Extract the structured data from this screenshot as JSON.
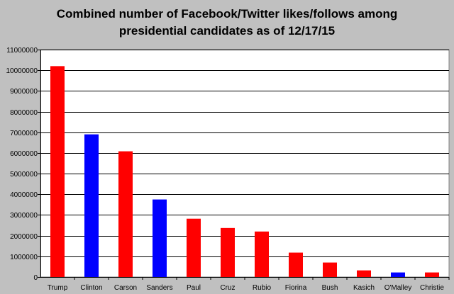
{
  "chart_data": {
    "type": "bar",
    "title_lines": [
      "Combined number of Facebook/Twitter likes/follows among",
      "presidential candidates as of 12/17/15"
    ],
    "xlabel": "",
    "ylabel": "",
    "categories": [
      "Trump",
      "Clinton",
      "Carson",
      "Sanders",
      "Paul",
      "Cruz",
      "Rubio",
      "Fiorina",
      "Bush",
      "Kasich",
      "O'Malley",
      "Christie"
    ],
    "values": [
      10200000,
      6900000,
      6080000,
      3750000,
      2820000,
      2370000,
      2200000,
      1180000,
      700000,
      320000,
      220000,
      220000
    ],
    "bar_colors": [
      "#ff0000",
      "#0000ff",
      "#ff0000",
      "#0000ff",
      "#ff0000",
      "#ff0000",
      "#ff0000",
      "#ff0000",
      "#ff0000",
      "#ff0000",
      "#0000ff",
      "#ff0000"
    ],
    "ylim": [
      0,
      11000000
    ],
    "yticks": [
      0,
      1000000,
      2000000,
      3000000,
      4000000,
      5000000,
      6000000,
      7000000,
      8000000,
      9000000,
      10000000,
      11000000
    ],
    "ytick_labels": [
      "0",
      "1000000",
      "2000000",
      "3000000",
      "4000000",
      "5000000",
      "6000000",
      "7000000",
      "8000000",
      "9000000",
      "10000000",
      "11000000"
    ],
    "grid": true,
    "legend": "none"
  },
  "colors": {
    "background": "#c0c0c0",
    "plot_area": "#ffffff",
    "gridline": "#000000",
    "republican": "#ff0000",
    "democrat": "#0000ff"
  }
}
